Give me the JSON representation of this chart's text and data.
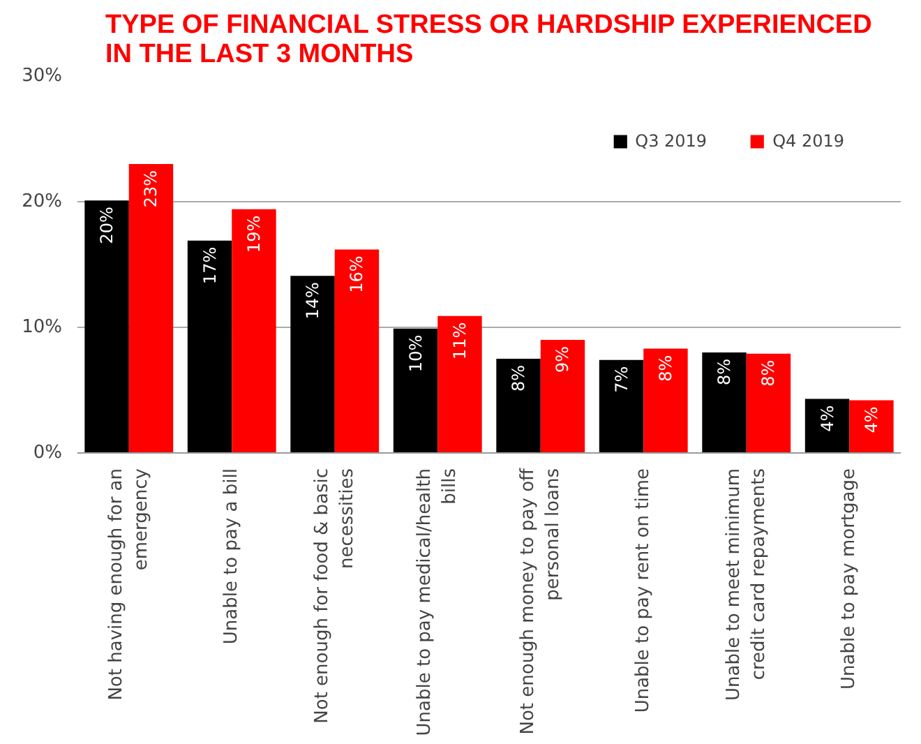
{
  "chart_data": {
    "type": "bar",
    "title": "TYPE OF FINANCIAL STRESS OR HARDSHIP EXPERIENCED IN THE LAST 3 MONTHS",
    "categories": [
      "Not having enough for an emergency",
      "Unable to pay a bill",
      "Not enough for food & basic necessities",
      "Unable to pay medical/health bills",
      "Not enough money to pay off personal loans",
      "Unable to pay rent on time",
      "Unable to meet minimum credit card repayments",
      "Unable to pay mortgage"
    ],
    "series": [
      {
        "name": "Q3 2019",
        "color": "#000000",
        "values": [
          20.1,
          16.9,
          14.1,
          9.9,
          7.5,
          7.4,
          8.0,
          4.3
        ],
        "value_labels": [
          "20%",
          "17%",
          "14%",
          "10%",
          "8%",
          "7%",
          "8%",
          "4%"
        ]
      },
      {
        "name": "Q4 2019",
        "color": "#ff0000",
        "values": [
          23.0,
          19.4,
          16.2,
          10.9,
          9.0,
          8.3,
          7.9,
          4.2
        ],
        "value_labels": [
          "23%",
          "19%",
          "16%",
          "11%",
          "9%",
          "8%",
          "8%",
          "4%"
        ]
      }
    ],
    "ylim": [
      0,
      30
    ],
    "yticks": [
      {
        "value": 0,
        "label": "0%"
      },
      {
        "value": 10,
        "label": "10%"
      },
      {
        "value": 20,
        "label": "20%"
      },
      {
        "value": 30,
        "label": "30%"
      }
    ],
    "grid": "y",
    "legend": "top right"
  }
}
